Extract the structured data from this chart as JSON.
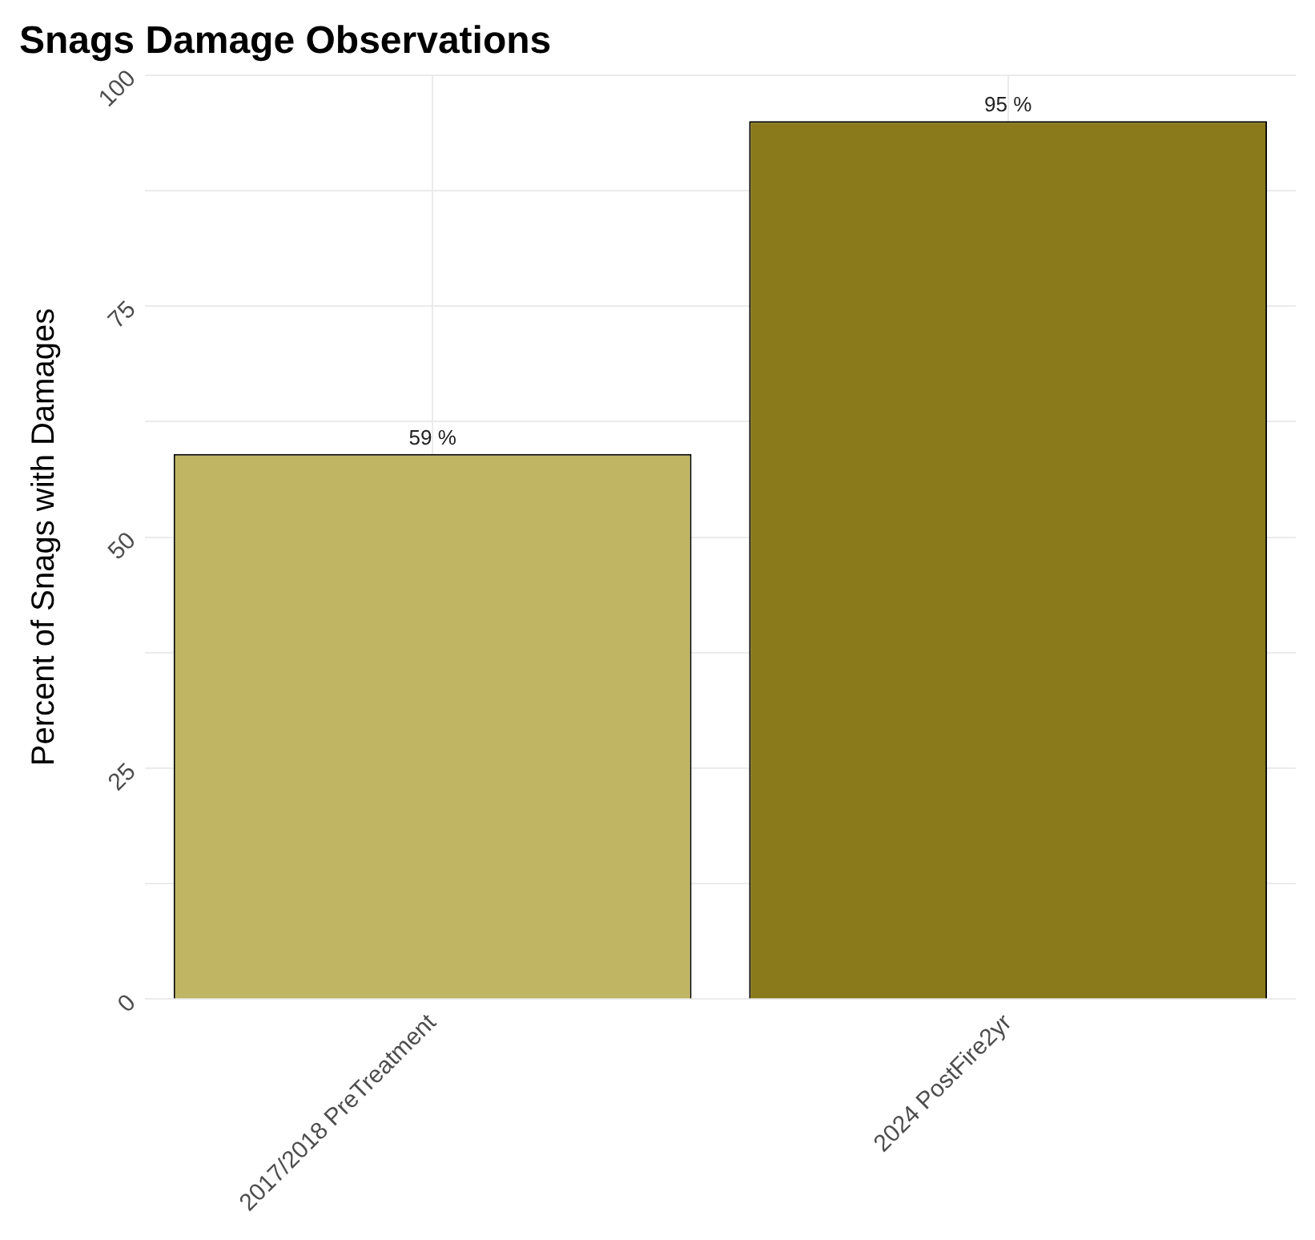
{
  "chart_data": {
    "type": "bar",
    "title": "Snags Damage Observations",
    "ylabel": "Percent of Snags with Damages",
    "categories": [
      "2017/2018 PreTreatment",
      "2024 PostFire2yr"
    ],
    "values": [
      59,
      95
    ],
    "colors": [
      "#bfb562",
      "#8a7a1c"
    ],
    "value_labels": [
      "59 %",
      "95 %"
    ],
    "ylim": [
      0,
      100
    ],
    "yticks": [
      0,
      {
        "value": 12.5,
        "label": null
      },
      25,
      {
        "value": 37.5,
        "label": null
      },
      50,
      {
        "value": 62.5,
        "label": null
      },
      75,
      {
        "value": 87.5,
        "label": null
      },
      100
    ],
    "grid": true,
    "legend": false
  }
}
